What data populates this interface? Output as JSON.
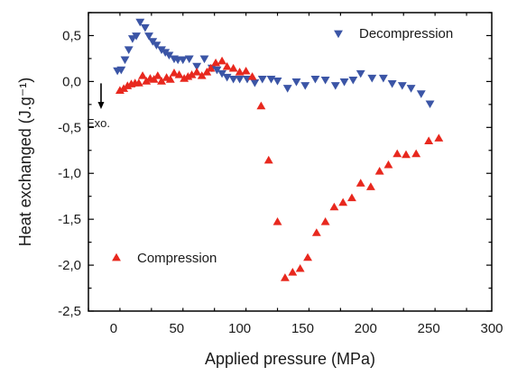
{
  "chart_data": {
    "type": "scatter",
    "xlabel": "Applied pressure (MPa)",
    "ylabel": "Heat exchanged (J.g⁻¹)",
    "xlim": [
      -20,
      300
    ],
    "ylim": [
      -2.5,
      0.75
    ],
    "x_ticks": [
      0,
      50,
      100,
      150,
      200,
      250,
      300
    ],
    "x_tick_labels": [
      "0",
      "50",
      "100",
      "150",
      "200",
      "250",
      "300"
    ],
    "y_ticks": [
      0.5,
      0,
      -0.5,
      -1,
      -1.5,
      -2,
      -2.5
    ],
    "y_tick_labels": [
      "0,5",
      "0,0",
      "-0,5",
      "-1,0",
      "-1,5",
      "-2,0",
      "-2,5"
    ],
    "grid": false,
    "annotation": {
      "text": "Exo.",
      "arrow_direction": "down",
      "arrow_x": -10,
      "arrow_y_from": -0.02,
      "arrow_y_to": -0.3
    },
    "series": [
      {
        "name": "Decompression",
        "marker": "triangle-down",
        "color": "#3b55a6",
        "legend_position": "top-right",
        "points": [
          [
            3,
            0.12
          ],
          [
            6,
            0.13
          ],
          [
            9,
            0.24
          ],
          [
            12,
            0.35
          ],
          [
            15,
            0.47
          ],
          [
            18,
            0.5
          ],
          [
            21,
            0.65
          ],
          [
            25,
            0.59
          ],
          [
            28,
            0.5
          ],
          [
            31,
            0.44
          ],
          [
            34,
            0.4
          ],
          [
            38,
            0.35
          ],
          [
            41,
            0.32
          ],
          [
            44,
            0.29
          ],
          [
            48,
            0.25
          ],
          [
            51,
            0.24
          ],
          [
            55,
            0.24
          ],
          [
            60,
            0.25
          ],
          [
            66,
            0.17
          ],
          [
            72,
            0.25
          ],
          [
            78,
            0.15
          ],
          [
            82,
            0.13
          ],
          [
            86,
            0.09
          ],
          [
            90,
            0.05
          ],
          [
            95,
            0.03
          ],
          [
            100,
            0.03
          ],
          [
            106,
            0.03
          ],
          [
            112,
            -0.01
          ],
          [
            118,
            0.03
          ],
          [
            125,
            0.03
          ],
          [
            130,
            0.01
          ],
          [
            138,
            -0.07
          ],
          [
            145,
            0.0
          ],
          [
            152,
            -0.04
          ],
          [
            160,
            0.03
          ],
          [
            168,
            0.02
          ],
          [
            176,
            -0.04
          ],
          [
            183,
            0.0
          ],
          [
            190,
            0.02
          ],
          [
            196,
            0.09
          ],
          [
            205,
            0.04
          ],
          [
            214,
            0.04
          ],
          [
            221,
            -0.02
          ],
          [
            229,
            -0.04
          ],
          [
            236,
            -0.07
          ],
          [
            244,
            -0.13
          ],
          [
            251,
            -0.24
          ]
        ]
      },
      {
        "name": "Compression",
        "marker": "triangle-up",
        "color": "#e8281e",
        "legend_position": "bottom-left",
        "points": [
          [
            5,
            -0.1
          ],
          [
            8,
            -0.08
          ],
          [
            11,
            -0.05
          ],
          [
            14,
            -0.03
          ],
          [
            17,
            -0.02
          ],
          [
            20,
            -0.02
          ],
          [
            23,
            0.06
          ],
          [
            26,
            0.0
          ],
          [
            29,
            0.03
          ],
          [
            32,
            0.02
          ],
          [
            35,
            0.06
          ],
          [
            38,
            0.0
          ],
          [
            42,
            0.04
          ],
          [
            45,
            0.02
          ],
          [
            48,
            0.09
          ],
          [
            52,
            0.07
          ],
          [
            56,
            0.03
          ],
          [
            59,
            0.05
          ],
          [
            62,
            0.07
          ],
          [
            66,
            0.1
          ],
          [
            70,
            0.06
          ],
          [
            74,
            0.1
          ],
          [
            77,
            0.14
          ],
          [
            81,
            0.2
          ],
          [
            86,
            0.22
          ],
          [
            90,
            0.16
          ],
          [
            95,
            0.14
          ],
          [
            100,
            0.1
          ],
          [
            105,
            0.11
          ],
          [
            110,
            0.05
          ],
          [
            117,
            -0.27
          ],
          [
            123,
            -0.86
          ],
          [
            130,
            -1.53
          ],
          [
            136,
            -2.14
          ],
          [
            142,
            -2.08
          ],
          [
            148,
            -2.04
          ],
          [
            154,
            -1.92
          ],
          [
            161,
            -1.65
          ],
          [
            168,
            -1.53
          ],
          [
            175,
            -1.37
          ],
          [
            182,
            -1.32
          ],
          [
            189,
            -1.27
          ],
          [
            196,
            -1.11
          ],
          [
            204,
            -1.15
          ],
          [
            211,
            -0.98
          ],
          [
            218,
            -0.91
          ],
          [
            225,
            -0.79
          ],
          [
            232,
            -0.8
          ],
          [
            240,
            -0.79
          ],
          [
            250,
            -0.65
          ],
          [
            258,
            -0.62
          ]
        ]
      }
    ]
  }
}
